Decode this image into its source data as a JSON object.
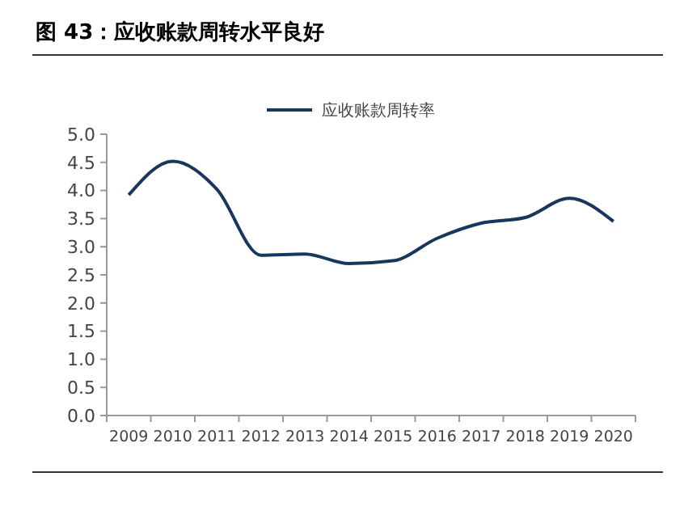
{
  "chart_data": {
    "type": "line",
    "title": "图 43：应收账款周转水平良好",
    "categories": [
      "2009",
      "2010",
      "2011",
      "2012",
      "2013",
      "2014",
      "2015",
      "2016",
      "2017",
      "2018",
      "2019",
      "2020"
    ],
    "series": [
      {
        "name": "应收账款周转率",
        "color": "#17375e",
        "values": [
          3.92,
          4.52,
          4.02,
          2.85,
          2.87,
          2.7,
          2.75,
          3.15,
          3.42,
          3.52,
          3.86,
          3.45
        ]
      }
    ],
    "ylim": [
      0,
      5
    ],
    "yticks": [
      {
        "value": 0,
        "label": "0.0"
      },
      {
        "value": 0.5,
        "label": "0.5"
      },
      {
        "value": 1,
        "label": "1.0"
      },
      {
        "value": 1.5,
        "label": "1.5"
      },
      {
        "value": 2,
        "label": "2.0"
      },
      {
        "value": 2.5,
        "label": "2.5"
      },
      {
        "value": 3,
        "label": "3.0"
      },
      {
        "value": 3.5,
        "label": "3.5"
      },
      {
        "value": 4,
        "label": "4.0"
      },
      {
        "value": 4.5,
        "label": "4.5"
      },
      {
        "value": 5,
        "label": "5.0"
      }
    ],
    "legend": "top",
    "grid": false,
    "marker": "none",
    "line_style": "solid"
  }
}
